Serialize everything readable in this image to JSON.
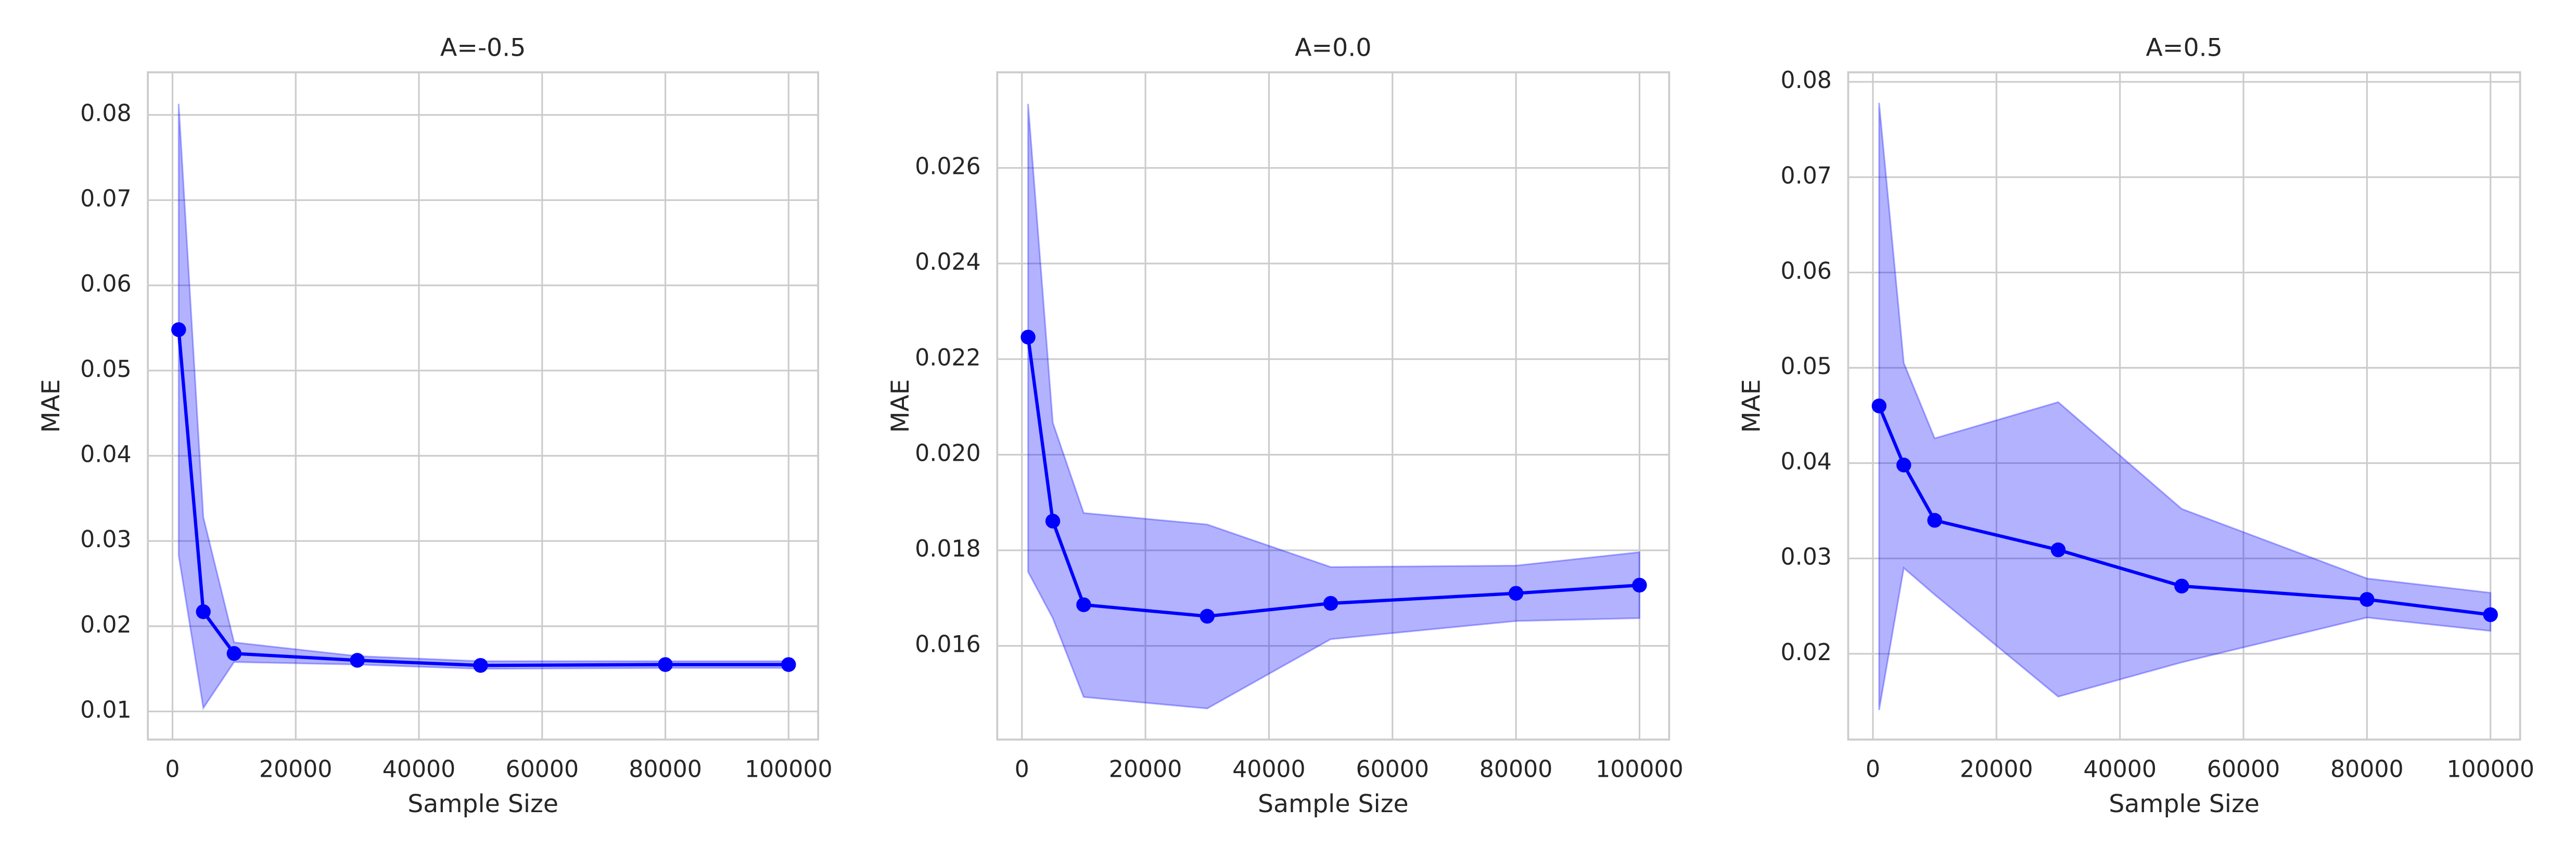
{
  "chart_data": [
    {
      "type": "line",
      "title": "A=-0.5",
      "x_label": "Sample Size",
      "y_label": "MAE",
      "x": [
        1000,
        5000,
        10000,
        30000,
        50000,
        80000,
        100000
      ],
      "series": [
        {
          "color": "#0000ff",
          "values": [
            0.0548,
            0.0217,
            0.0168,
            0.016,
            0.0154,
            0.0155,
            0.0155
          ],
          "lower": [
            0.0283,
            0.0104,
            0.0158,
            0.0155,
            0.015,
            0.0151,
            0.0151
          ],
          "upper": [
            0.0813,
            0.0328,
            0.0181,
            0.0165,
            0.0159,
            0.0159,
            0.0159
          ]
        }
      ],
      "xlim": [
        -4000,
        104800
      ],
      "ylim": [
        0.0067,
        0.085
      ],
      "xticks": [
        0,
        20000,
        40000,
        60000,
        80000,
        100000
      ],
      "yticks": [
        0.01,
        0.02,
        0.03,
        0.04,
        0.05,
        0.06,
        0.07,
        0.08
      ],
      "grid": true
    },
    {
      "type": "line",
      "title": "A=0.0",
      "x_label": "Sample Size",
      "y_label": "MAE",
      "x": [
        1000,
        5000,
        10000,
        30000,
        50000,
        80000,
        100000
      ],
      "series": [
        {
          "color": "#0000ff",
          "values": [
            0.02246,
            0.01861,
            0.01686,
            0.01662,
            0.01689,
            0.0171,
            0.01727
          ],
          "lower": [
            0.01755,
            0.01658,
            0.01493,
            0.01469,
            0.01614,
            0.01652,
            0.01658
          ],
          "upper": [
            0.02734,
            0.02067,
            0.01878,
            0.01854,
            0.01765,
            0.01768,
            0.01796
          ]
        }
      ],
      "xlim": [
        -4000,
        104800
      ],
      "ylim": [
        0.01404,
        0.028
      ],
      "xticks": [
        0,
        20000,
        40000,
        60000,
        80000,
        100000
      ],
      "yticks": [
        0.016,
        0.018,
        {
          "value": 0.02,
          "label": "0.020"
        },
        0.022,
        0.024,
        0.026
      ],
      "grid": true
    },
    {
      "type": "line",
      "title": "A=0.5",
      "x_label": "Sample Size",
      "y_label": "MAE",
      "x": [
        1000,
        5000,
        10000,
        30000,
        50000,
        80000,
        100000
      ],
      "series": [
        {
          "color": "#0000ff",
          "values": [
            0.046,
            0.0398,
            0.034,
            0.0309,
            0.0271,
            0.0257,
            0.0241
          ],
          "lower": [
            0.0141,
            0.029,
            0.0262,
            0.0155,
            0.0191,
            0.0238,
            0.0224
          ],
          "upper": [
            0.0778,
            0.0505,
            0.0426,
            0.0464,
            0.0352,
            0.0279,
            0.0264
          ]
        }
      ],
      "xlim": [
        -4000,
        104800
      ],
      "ylim": [
        0.011,
        0.081
      ],
      "xticks": [
        0,
        20000,
        40000,
        60000,
        80000,
        100000
      ],
      "yticks": [
        0.02,
        0.03,
        0.04,
        0.05,
        0.06,
        0.07,
        0.08
      ],
      "grid": true
    }
  ]
}
